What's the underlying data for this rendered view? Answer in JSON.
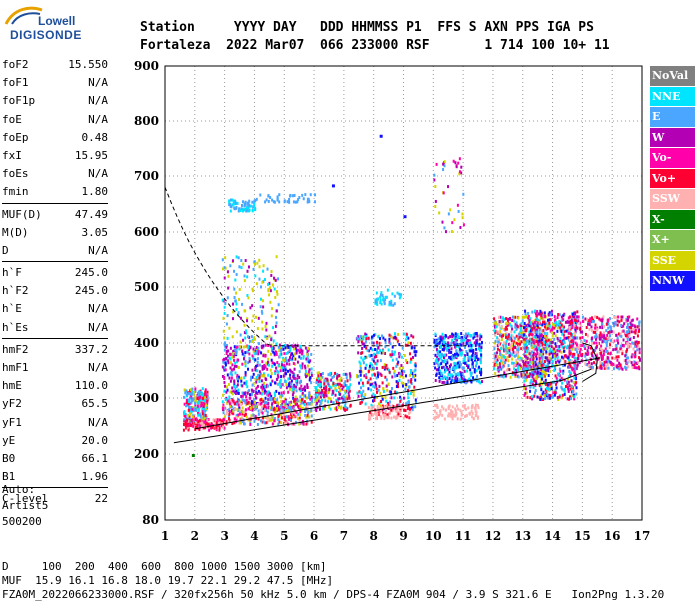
{
  "logo": {
    "word": "Lowell",
    "brand": "DIGISONDE"
  },
  "header": {
    "line1": "Station     YYYY DAY   DDD HHMMSS P1  FFS S AXN PPS IGA PS",
    "line2": "Fortaleza  2022 Mar07  066 233000 RSF       1 714 100 10+ 11"
  },
  "params": [
    {
      "name": "foF2",
      "value": "15.550"
    },
    {
      "name": "foF1",
      "value": "N/A"
    },
    {
      "name": "foF1p",
      "value": "N/A"
    },
    {
      "name": "foE",
      "value": "N/A"
    },
    {
      "name": "foEp",
      "value": "0.48"
    },
    {
      "name": "fxI",
      "value": "15.95"
    },
    {
      "name": "foEs",
      "value": "N/A"
    },
    {
      "name": "fmin",
      "value": "1.80"
    },
    {
      "name": "MUF(D)",
      "value": "47.49"
    },
    {
      "name": "M(D)",
      "value": "3.05"
    },
    {
      "name": "D",
      "value": "N/A"
    },
    {
      "name": "h`F",
      "value": "245.0"
    },
    {
      "name": "h`F2",
      "value": "245.0"
    },
    {
      "name": "h`E",
      "value": "N/A"
    },
    {
      "name": "h`Es",
      "value": "N/A"
    },
    {
      "name": "hmF2",
      "value": "337.2"
    },
    {
      "name": "hmF1",
      "value": "N/A"
    },
    {
      "name": "hmE",
      "value": "110.0"
    },
    {
      "name": "yF2",
      "value": "65.5"
    },
    {
      "name": "yF1",
      "value": "N/A"
    },
    {
      "name": "yE",
      "value": "20.0"
    },
    {
      "name": "B0",
      "value": "66.1"
    },
    {
      "name": "B1",
      "value": "1.96"
    },
    {
      "name": "C-level",
      "value": "22"
    }
  ],
  "auto": [
    "Auto:",
    "Artist5",
    "500200"
  ],
  "legend": [
    {
      "label": "NoVal",
      "color": "#808080"
    },
    {
      "label": "NNE",
      "color": "#00e5ff"
    },
    {
      "label": "E",
      "color": "#4aa6ff"
    },
    {
      "label": "W",
      "color": "#b400b4"
    },
    {
      "label": "Vo-",
      "color": "#ff00aa"
    },
    {
      "label": "Vo+",
      "color": "#ff0033"
    },
    {
      "label": "SSW",
      "color": "#ffb0b0"
    },
    {
      "label": "X-",
      "color": "#007f00"
    },
    {
      "label": "X+",
      "color": "#7fbf50"
    },
    {
      "label": "SSE",
      "color": "#d4d400"
    },
    {
      "label": "NNW",
      "color": "#1010ff"
    }
  ],
  "footer": {
    "line1": "D     100  200  400  600  800 1000 1500 3000 [km]",
    "line2": "MUF  15.9 16.1 16.8 18.0 19.7 22.1 29.2 47.5 [MHz]",
    "line3": "FZA0M_2022066233000.RSF / 320fx256h 50 kHz 5.0 km / DPS-4 FZA0M 904 / 3.9 S 321.6 E   Ion2Png 1.3.20"
  },
  "chart_data": {
    "type": "scatter",
    "x_ticks": [
      "1",
      "2",
      "3",
      "4",
      "5",
      "6",
      "7",
      "8",
      "9",
      "10",
      "11",
      "12",
      "13",
      "14",
      "15",
      "16",
      "17"
    ],
    "y_ticks": [
      "80",
      "200",
      "300",
      "400",
      "500",
      "600",
      "700",
      "800",
      "900"
    ],
    "xlim": [
      1,
      17
    ],
    "ylim": [
      80,
      900
    ],
    "grid": true
  }
}
